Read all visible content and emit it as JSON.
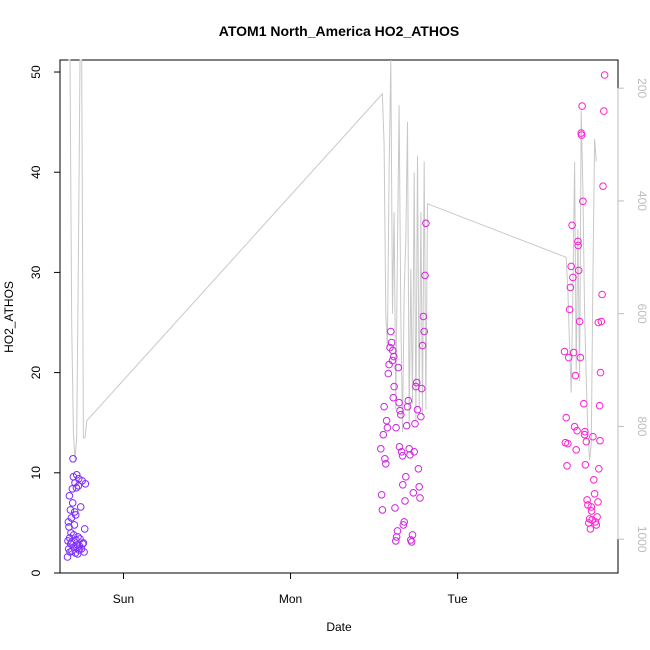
{
  "chart_data": {
    "type": "scatter",
    "title": "ATOM1 North_America HO2_ATHOS",
    "xlabel": "Date",
    "ylabel": "HO2_ATHOS",
    "x_ticks": [
      "Sun",
      "Mon",
      "Tue"
    ],
    "x_tick_days": [
      1,
      2,
      3
    ],
    "xlim_days": [
      0.62,
      3.96
    ],
    "ylim": [
      0,
      51.2
    ],
    "y_ticks": [
      0,
      10,
      20,
      30,
      40,
      50
    ],
    "right_axis": {
      "ylim_inverted": [
        150,
        1060
      ],
      "ticks": [
        200,
        400,
        600,
        800,
        1000
      ]
    },
    "grid": false,
    "colors": {
      "points_start": "#7b2cff",
      "points_end": "#ff22cc",
      "pressure_line": "#c8c8c8"
    },
    "pressure_series": [
      [
        0.67,
        150
      ],
      [
        0.68,
        150
      ],
      [
        0.69,
        620
      ],
      [
        0.7,
        810
      ],
      [
        0.71,
        860
      ],
      [
        0.72,
        820
      ],
      [
        0.73,
        500
      ],
      [
        0.74,
        150
      ],
      [
        0.75,
        150
      ],
      [
        0.76,
        820
      ],
      [
        0.77,
        820
      ],
      [
        0.78,
        790
      ],
      [
        2.55,
        210
      ],
      [
        2.56,
        300
      ],
      [
        2.57,
        600
      ],
      [
        2.58,
        660
      ],
      [
        2.59,
        350
      ],
      [
        2.6,
        150
      ],
      [
        2.61,
        600
      ],
      [
        2.62,
        420
      ],
      [
        2.63,
        770
      ],
      [
        2.64,
        480
      ],
      [
        2.65,
        230
      ],
      [
        2.66,
        600
      ],
      [
        2.67,
        810
      ],
      [
        2.68,
        560
      ],
      [
        2.69,
        470
      ],
      [
        2.7,
        260
      ],
      [
        2.71,
        800
      ],
      [
        2.72,
        520
      ],
      [
        2.73,
        760
      ],
      [
        2.74,
        350
      ],
      [
        2.75,
        790
      ],
      [
        2.76,
        320
      ],
      [
        2.77,
        770
      ],
      [
        2.78,
        420
      ],
      [
        2.79,
        780
      ],
      [
        2.8,
        330
      ],
      [
        2.81,
        770
      ],
      [
        2.82,
        405
      ],
      [
        3.65,
        500
      ],
      [
        3.66,
        560
      ],
      [
        3.67,
        660
      ],
      [
        3.68,
        740
      ],
      [
        3.69,
        560
      ],
      [
        3.7,
        330
      ],
      [
        3.71,
        700
      ],
      [
        3.72,
        450
      ],
      [
        3.73,
        720
      ],
      [
        3.74,
        240
      ],
      [
        3.75,
        380
      ],
      [
        3.76,
        600
      ],
      [
        3.77,
        720
      ],
      [
        3.78,
        810
      ],
      [
        3.79,
        860
      ],
      [
        3.8,
        830
      ],
      [
        3.81,
        540
      ],
      [
        3.82,
        290
      ],
      [
        3.83,
        330
      ]
    ],
    "points": [
      [
        0.665,
        1.6
      ],
      [
        0.668,
        3.2
      ],
      [
        0.67,
        5.1
      ],
      [
        0.672,
        2.4
      ],
      [
        0.674,
        4.6
      ],
      [
        0.676,
        7.7
      ],
      [
        0.678,
        3.5
      ],
      [
        0.68,
        2.1
      ],
      [
        0.682,
        6.3
      ],
      [
        0.684,
        2.9
      ],
      [
        0.686,
        4.0
      ],
      [
        0.688,
        5.5
      ],
      [
        0.69,
        3.1
      ],
      [
        0.692,
        2.2
      ],
      [
        0.694,
        8.4
      ],
      [
        0.696,
        7.0
      ],
      [
        0.698,
        11.4
      ],
      [
        0.7,
        9.6
      ],
      [
        0.702,
        3.8
      ],
      [
        0.704,
        2.6
      ],
      [
        0.706,
        4.8
      ],
      [
        0.708,
        6.1
      ],
      [
        0.71,
        9.0
      ],
      [
        0.712,
        2.0
      ],
      [
        0.714,
        5.8
      ],
      [
        0.716,
        3.3
      ],
      [
        0.718,
        8.5
      ],
      [
        0.72,
        9.8
      ],
      [
        0.722,
        2.5
      ],
      [
        0.724,
        2.8
      ],
      [
        0.726,
        1.9
      ],
      [
        0.728,
        3.6
      ],
      [
        0.73,
        8.7
      ],
      [
        0.732,
        9.4
      ],
      [
        0.734,
        2.3
      ],
      [
        0.736,
        2.7
      ],
      [
        0.74,
        3.4
      ],
      [
        0.744,
        6.6
      ],
      [
        0.748,
        2.4
      ],
      [
        0.752,
        9.2
      ],
      [
        0.756,
        2.9
      ],
      [
        0.76,
        3.0
      ],
      [
        0.764,
        2.1
      ],
      [
        0.768,
        4.4
      ],
      [
        0.772,
        8.9
      ],
      [
        2.54,
        12.4
      ],
      [
        2.545,
        7.8
      ],
      [
        2.55,
        6.3
      ],
      [
        2.555,
        13.8
      ],
      [
        2.56,
        16.6
      ],
      [
        2.565,
        11.4
      ],
      [
        2.57,
        10.9
      ],
      [
        2.575,
        15.2
      ],
      [
        2.58,
        14.5
      ],
      [
        2.585,
        19.9
      ],
      [
        2.59,
        20.8
      ],
      [
        2.595,
        22.5
      ],
      [
        2.6,
        24.1
      ],
      [
        2.605,
        23.0
      ],
      [
        2.61,
        21.2
      ],
      [
        2.615,
        17.5
      ],
      [
        2.62,
        18.6
      ],
      [
        2.625,
        6.5
      ],
      [
        2.63,
        3.2
      ],
      [
        2.635,
        3.6
      ],
      [
        2.64,
        4.2
      ],
      [
        2.645,
        20.5
      ],
      [
        2.65,
        17.0
      ],
      [
        2.655,
        16.2
      ],
      [
        2.66,
        15.8
      ],
      [
        2.665,
        12.1
      ],
      [
        2.67,
        11.7
      ],
      [
        2.675,
        4.8
      ],
      [
        2.68,
        5.1
      ],
      [
        2.685,
        7.2
      ],
      [
        2.69,
        9.6
      ],
      [
        2.695,
        14.7
      ],
      [
        2.7,
        16.6
      ],
      [
        2.705,
        17.2
      ],
      [
        2.71,
        12.4
      ],
      [
        2.715,
        11.8
      ],
      [
        2.72,
        3.3
      ],
      [
        2.725,
        3.1
      ],
      [
        2.73,
        3.8
      ],
      [
        2.735,
        8.0
      ],
      [
        2.74,
        12.1
      ],
      [
        2.745,
        14.9
      ],
      [
        2.75,
        18.6
      ],
      [
        2.755,
        19.0
      ],
      [
        2.76,
        16.3
      ],
      [
        2.765,
        10.4
      ],
      [
        2.77,
        8.6
      ],
      [
        2.775,
        7.5
      ],
      [
        2.78,
        15.6
      ],
      [
        2.785,
        18.4
      ],
      [
        2.79,
        22.7
      ],
      [
        2.795,
        25.6
      ],
      [
        2.8,
        24.1
      ],
      [
        2.805,
        29.7
      ],
      [
        2.81,
        34.9
      ],
      [
        2.612,
        22.2
      ],
      [
        2.618,
        21.6
      ],
      [
        2.632,
        14.5
      ],
      [
        2.652,
        12.6
      ],
      [
        2.672,
        8.8
      ],
      [
        3.64,
        22.1
      ],
      [
        3.645,
        13.0
      ],
      [
        3.65,
        15.5
      ],
      [
        3.655,
        10.7
      ],
      [
        3.66,
        12.9
      ],
      [
        3.665,
        21.5
      ],
      [
        3.67,
        26.3
      ],
      [
        3.675,
        28.5
      ],
      [
        3.68,
        30.6
      ],
      [
        3.685,
        34.7
      ],
      [
        3.69,
        29.5
      ],
      [
        3.695,
        22.0
      ],
      [
        3.7,
        14.6
      ],
      [
        3.705,
        19.7
      ],
      [
        3.71,
        12.3
      ],
      [
        3.715,
        14.2
      ],
      [
        3.72,
        33.1
      ],
      [
        3.725,
        30.2
      ],
      [
        3.73,
        25.1
      ],
      [
        3.735,
        21.5
      ],
      [
        3.74,
        43.9
      ],
      [
        3.745,
        46.6
      ],
      [
        3.75,
        37.1
      ],
      [
        3.755,
        16.9
      ],
      [
        3.76,
        13.8
      ],
      [
        3.765,
        10.8
      ],
      [
        3.77,
        13.1
      ],
      [
        3.775,
        7.3
      ],
      [
        3.78,
        6.8
      ],
      [
        3.785,
        5.0
      ],
      [
        3.79,
        5.4
      ],
      [
        3.795,
        4.4
      ],
      [
        3.8,
        6.6
      ],
      [
        3.805,
        5.3
      ],
      [
        3.81,
        13.6
      ],
      [
        3.815,
        9.3
      ],
      [
        3.82,
        7.9
      ],
      [
        3.825,
        5.1
      ],
      [
        3.83,
        4.8
      ],
      [
        3.835,
        5.6
      ],
      [
        3.84,
        7.1
      ],
      [
        3.845,
        10.4
      ],
      [
        3.85,
        16.7
      ],
      [
        3.855,
        20.0
      ],
      [
        3.86,
        25.1
      ],
      [
        3.865,
        27.8
      ],
      [
        3.87,
        38.6
      ],
      [
        3.875,
        46.1
      ],
      [
        3.88,
        49.7
      ],
      [
        3.722,
        32.7
      ],
      [
        3.742,
        43.7
      ],
      [
        3.762,
        14.1
      ],
      [
        3.802,
        6.2
      ],
      [
        3.842,
        25.0
      ],
      [
        3.852,
        13.2
      ]
    ]
  }
}
